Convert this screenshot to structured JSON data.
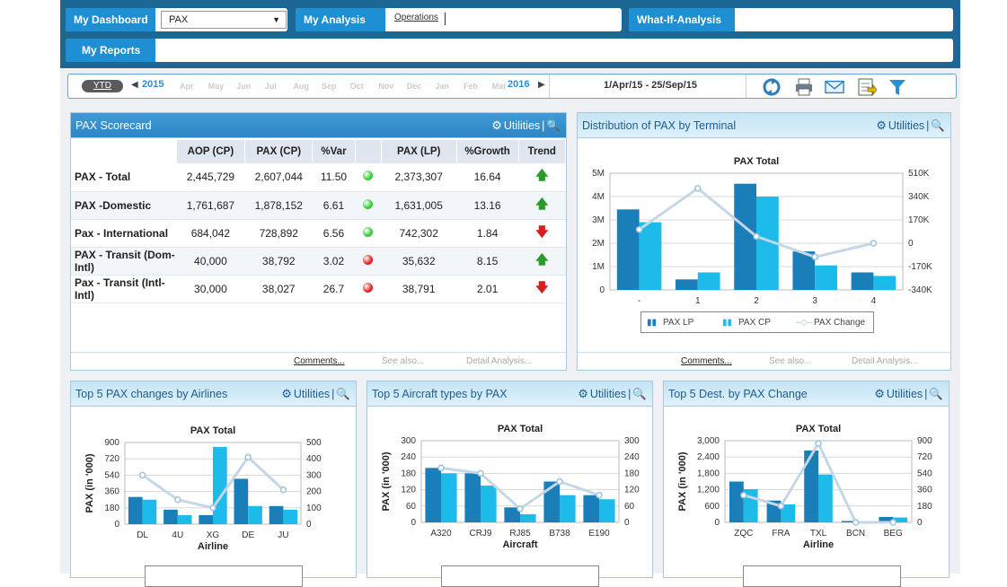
{
  "nav": {
    "dashboard_label": "My Dashboard",
    "dashboard_select": "PAX",
    "analysis_label": "My Analysis",
    "analysis_link": "Operations",
    "whatif_label": "What-If-Analysis",
    "reports_label": "My Reports"
  },
  "timeline": {
    "ytd": "YTD",
    "year_start": "2015",
    "year_end": "2016",
    "months": [
      "Apr",
      "May",
      "Jun",
      "Jul",
      "Aug",
      "Sep",
      "Oct",
      "Nov",
      "Dec",
      "Jan",
      "Feb",
      "Mar"
    ],
    "range": "1/Apr/15 - 25/Sep/15"
  },
  "toolbar": {
    "icons": [
      "refresh-icon",
      "print-icon",
      "email-icon",
      "export-icon",
      "filter-icon"
    ]
  },
  "common": {
    "utilities": "Utilities",
    "comments": "Comments...",
    "see_also": "See also...",
    "detail": "Detail Analysis..."
  },
  "scorecard": {
    "title": "PAX Scorecard",
    "headers": [
      "",
      "AOP (CP)",
      "PAX (CP)",
      "%Var",
      "",
      "PAX (LP)",
      "%Growth",
      "Trend"
    ],
    "rows": [
      {
        "name": "PAX - Total",
        "aop": "2,445,729",
        "cp": "2,607,044",
        "var": "11.50",
        "status": "green",
        "lp": "2,373,307",
        "growth": "16.64",
        "trend": "up"
      },
      {
        "name": "PAX -Domestic",
        "aop": "1,761,687",
        "cp": "1,878,152",
        "var": "6.61",
        "status": "green",
        "lp": "1,631,005",
        "growth": "13.16",
        "trend": "up"
      },
      {
        "name": "Pax - International",
        "aop": "684,042",
        "cp": "728,892",
        "var": "6.56",
        "status": "green",
        "lp": "742,302",
        "growth": "1.84",
        "trend": "down"
      },
      {
        "name": "PAX - Transit (Dom-Intl)",
        "aop": "40,000",
        "cp": "38,792",
        "var": "3.02",
        "status": "red",
        "lp": "35,632",
        "growth": "8.15",
        "trend": "up"
      },
      {
        "name": "Pax - Transit (Intl-Intl)",
        "aop": "30,000",
        "cp": "38,027",
        "var": "26.7",
        "status": "red",
        "lp": "38,791",
        "growth": "2.01",
        "trend": "down"
      }
    ],
    "colors": {
      "green": "#33cc33",
      "red": "#e02020",
      "up": "#2a9a2a",
      "down": "#d42020"
    }
  },
  "terminal": {
    "title": "Distribution of PAX by Terminal",
    "legend": [
      "PAX LP",
      "PAX CP",
      "PAX Change"
    ]
  },
  "airlines": {
    "title": "Top 5 PAX changes by Airlines"
  },
  "aircraft": {
    "title": "Top 5 Aircraft types by PAX"
  },
  "dest": {
    "title": "Top 5 Dest. by PAX Change"
  },
  "chart_data": [
    {
      "type": "bar",
      "title": "PAX Total",
      "categories": [
        "-",
        "1",
        "2",
        "3",
        "4"
      ],
      "series": [
        {
          "name": "PAX LP",
          "values": [
            3.45,
            0.45,
            4.55,
            1.65,
            0.75
          ]
        },
        {
          "name": "PAX CP",
          "values": [
            2.9,
            0.75,
            4.0,
            1.05,
            0.6
          ]
        },
        {
          "name": "PAX Change",
          "type": "line",
          "axis": "right",
          "values": [
            100,
            400,
            50,
            -100,
            0
          ]
        }
      ],
      "ylim": [
        0,
        5
      ],
      "yticks": [
        "0",
        "1M",
        "2M",
        "3M",
        "4M",
        "5M"
      ],
      "y2lim": [
        -340,
        510
      ],
      "y2ticks": [
        "-340K",
        "-170K",
        "0",
        "170K",
        "340K",
        "510K"
      ],
      "colors": [
        "#1a7fb8",
        "#1dbbea",
        "#c5d7e6"
      ]
    },
    {
      "type": "bar",
      "title": "PAX Total",
      "categories": [
        "DL",
        "4U",
        "XG",
        "DE",
        "JU"
      ],
      "series": [
        {
          "values": [
            300,
            160,
            100,
            500,
            200
          ]
        },
        {
          "values": [
            270,
            100,
            850,
            200,
            160
          ]
        },
        {
          "type": "line",
          "axis": "right",
          "values": [
            300,
            150,
            100,
            410,
            210
          ]
        }
      ],
      "xlabel": "Airline",
      "ylabel": "PAX (in '000)",
      "ylim": [
        0,
        900
      ],
      "yticks": [
        "0",
        "180",
        "360",
        "540",
        "720",
        "900"
      ],
      "y2lim": [
        0,
        500
      ],
      "y2ticks": [
        "0",
        "100",
        "200",
        "300",
        "400",
        "500"
      ]
    },
    {
      "type": "bar",
      "title": "PAX Total",
      "categories": [
        "A320",
        "CRJ9",
        "RJ85",
        "B738",
        "E190"
      ],
      "series": [
        {
          "values": [
            200,
            180,
            55,
            150,
            100
          ]
        },
        {
          "values": [
            180,
            135,
            30,
            100,
            85
          ]
        },
        {
          "type": "line",
          "axis": "right",
          "values": [
            200,
            180,
            50,
            150,
            100
          ]
        }
      ],
      "xlabel": "Aircraft",
      "ylabel": "PAX (in '000)",
      "ylim": [
        0,
        300
      ],
      "yticks": [
        "0",
        "60",
        "120",
        "180",
        "240",
        "300"
      ],
      "y2lim": [
        0,
        300
      ],
      "y2ticks": [
        "0",
        "60",
        "120",
        "180",
        "240",
        "300"
      ]
    },
    {
      "type": "bar",
      "title": "PAX Total",
      "categories": [
        "ZQC",
        "FRA",
        "TXL",
        "BCN",
        "BEG"
      ],
      "series": [
        {
          "values": [
            1500,
            800,
            2640,
            50,
            200
          ]
        },
        {
          "values": [
            1220,
            660,
            1760,
            30,
            180
          ]
        },
        {
          "type": "line",
          "axis": "right",
          "values": [
            300,
            180,
            870,
            0,
            0
          ]
        }
      ],
      "xlabel": "Airline",
      "ylabel": "PAX (in '000)",
      "ylim": [
        0,
        3000
      ],
      "yticks": [
        "0",
        "600",
        "1,200",
        "1,800",
        "2,400",
        "3,000"
      ],
      "y2lim": [
        0,
        900
      ],
      "y2ticks": [
        "0",
        "180",
        "360",
        "540",
        "720",
        "900"
      ]
    }
  ]
}
